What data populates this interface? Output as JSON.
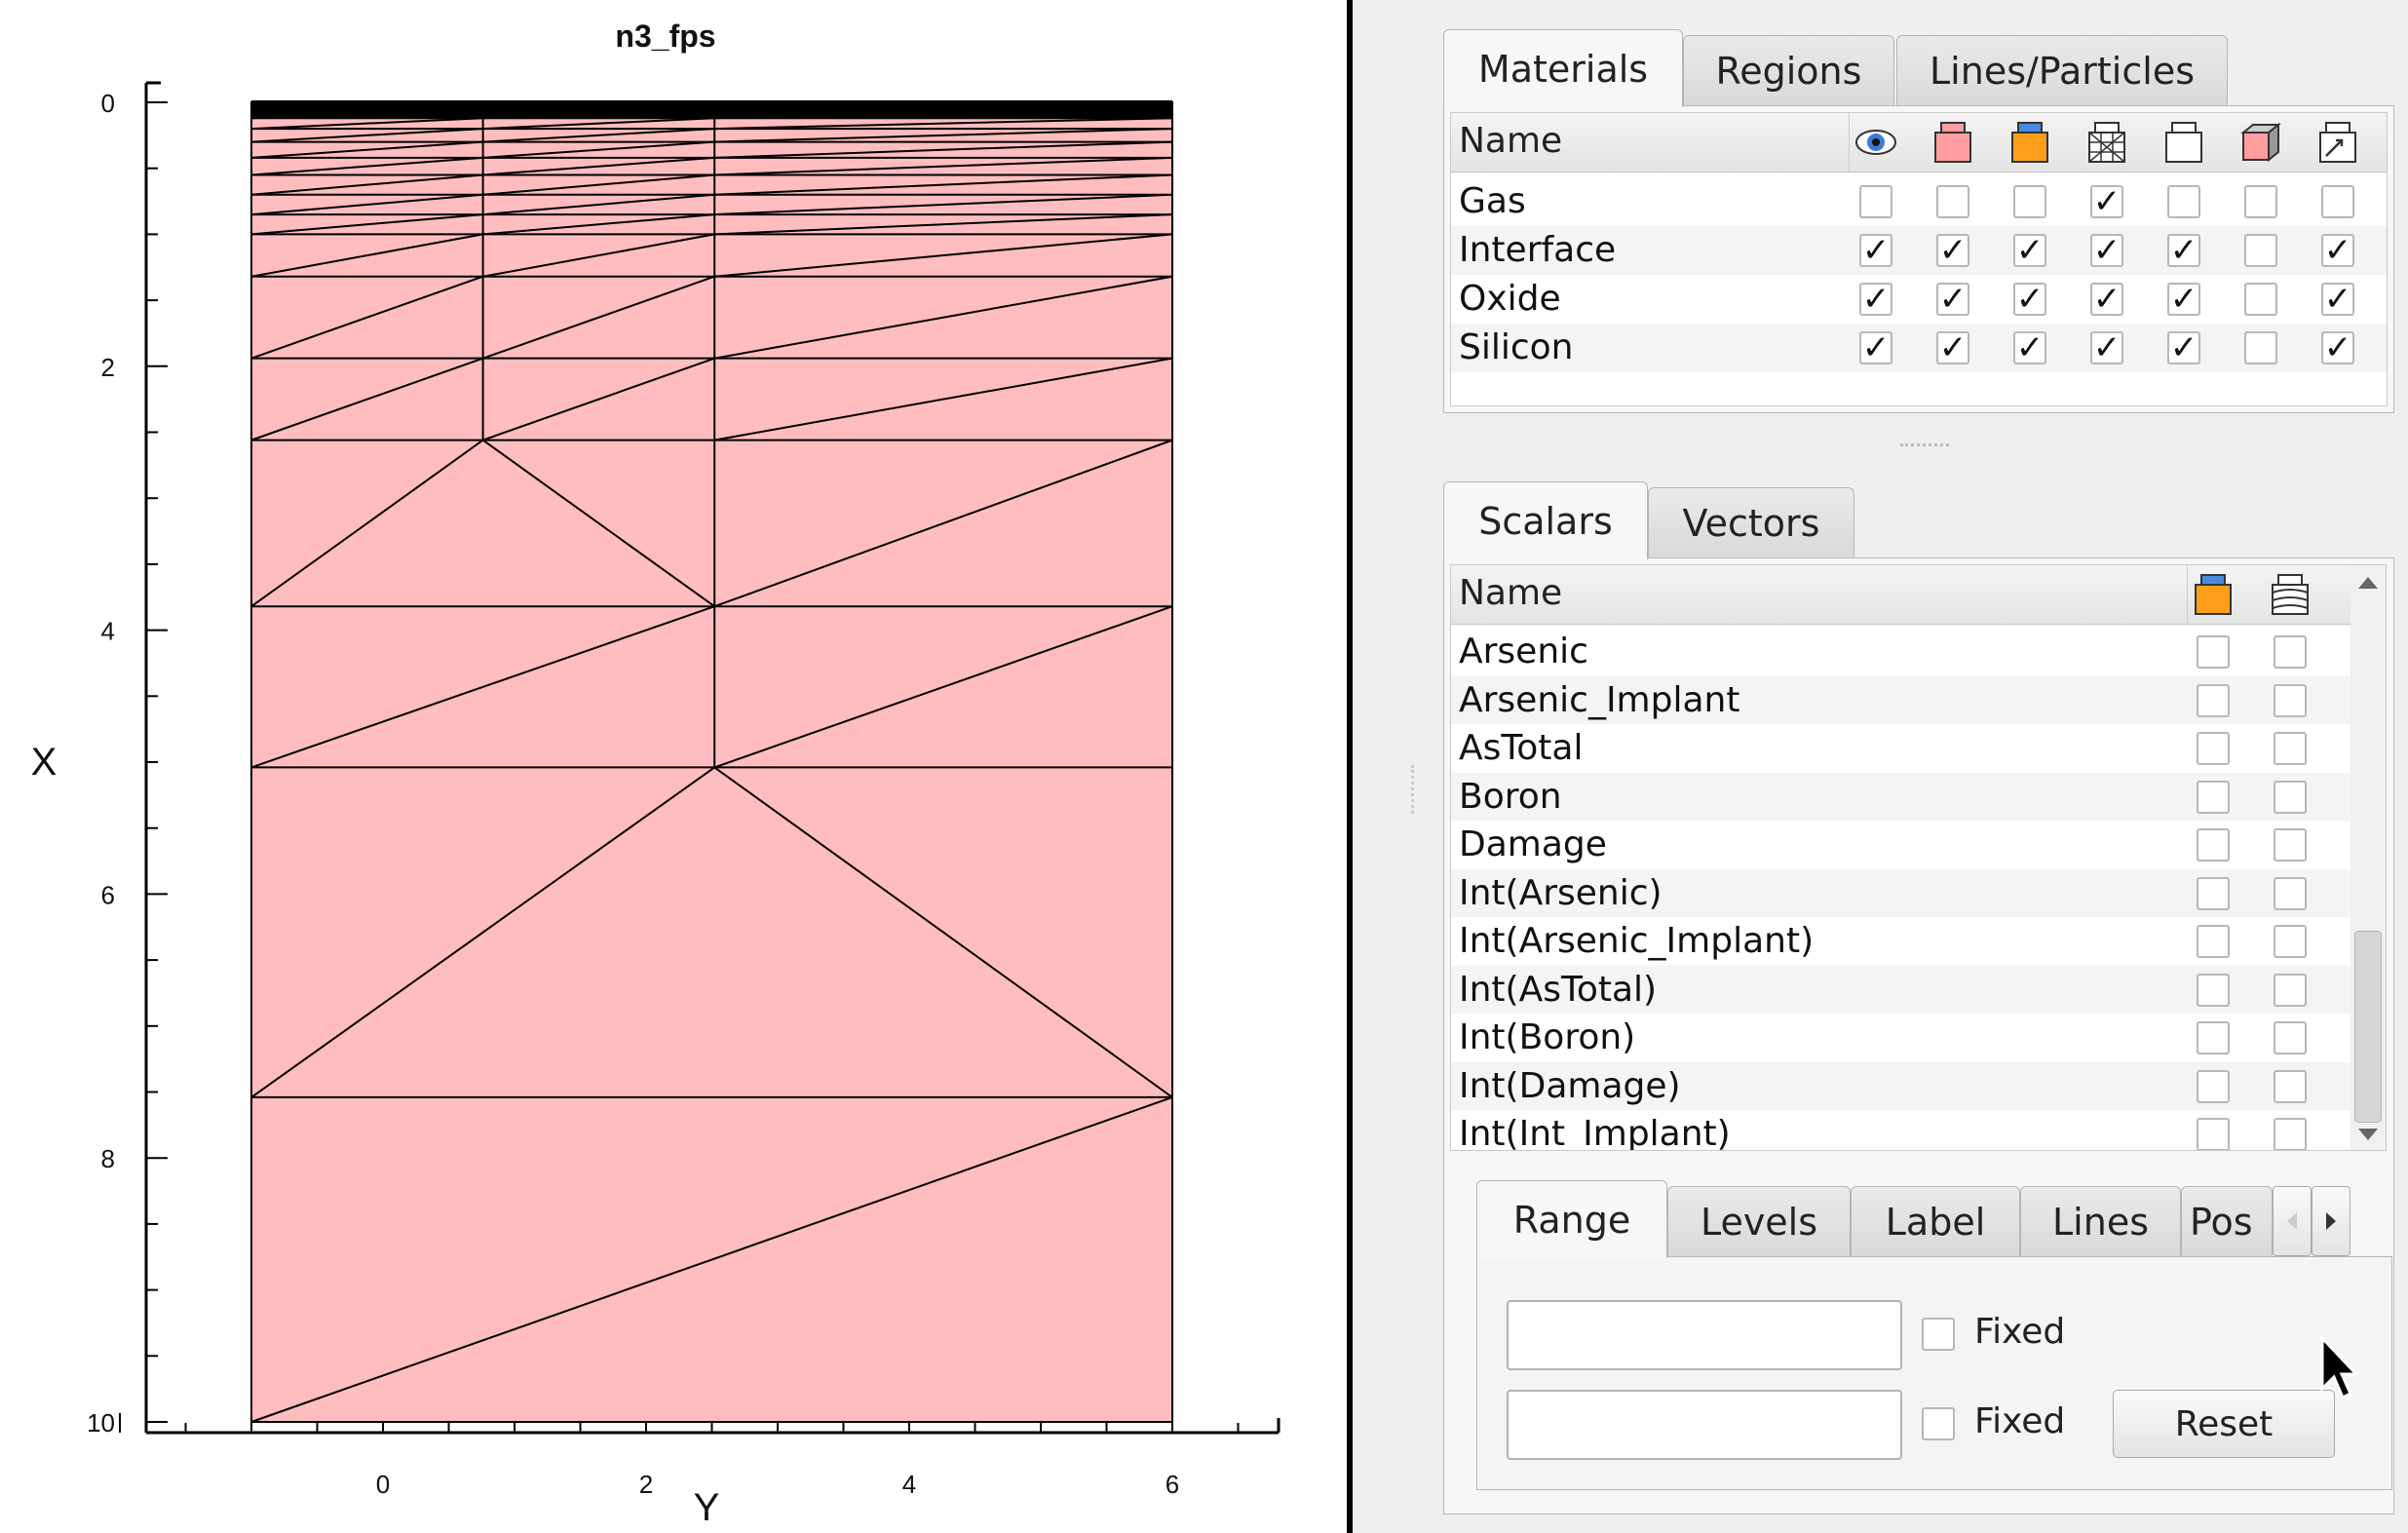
{
  "plot": {
    "title": "n3_fps",
    "xlabel": "Y",
    "ylabel": "X",
    "x_ticks": [
      "0",
      "2",
      "4",
      "6"
    ],
    "y_ticks": [
      "0",
      "2",
      "4",
      "6",
      "8",
      "10"
    ],
    "region_color": "#ffbdbf"
  },
  "materials_panel": {
    "tabs": [
      "Materials",
      "Regions",
      "Lines/Particles"
    ],
    "header_name": "Name",
    "column_icons": [
      "eye-icon",
      "fill-icon",
      "orange-fill-icon",
      "mesh-icon",
      "outline-icon",
      "box-3d-icon",
      "label-icon"
    ],
    "rows": [
      {
        "name": "Gas",
        "checks": [
          false,
          false,
          false,
          true,
          false,
          false,
          false
        ]
      },
      {
        "name": "Interface",
        "checks": [
          true,
          true,
          true,
          true,
          true,
          false,
          true
        ]
      },
      {
        "name": "Oxide",
        "checks": [
          true,
          true,
          true,
          true,
          true,
          false,
          true
        ]
      },
      {
        "name": "Silicon",
        "checks": [
          true,
          true,
          true,
          true,
          true,
          false,
          true
        ]
      }
    ]
  },
  "scalars_panel": {
    "tabs": [
      "Scalars",
      "Vectors"
    ],
    "header_name": "Name",
    "column_icons": [
      "orange-fill-icon",
      "contour-icon"
    ],
    "rows": [
      "Arsenic",
      "Arsenic_Implant",
      "AsTotal",
      "Boron",
      "Damage",
      "Int(Arsenic)",
      "Int(Arsenic_Implant)",
      "Int(AsTotal)",
      "Int(Boron)",
      "Int(Damage)",
      "Int(Int_Implant)"
    ]
  },
  "range_panel": {
    "tabs": [
      "Range",
      "Levels",
      "Label",
      "Lines",
      "Pos"
    ],
    "fixed_label_1": "Fixed",
    "fixed_label_2": "Fixed",
    "reset_label": "Reset",
    "min_value": "",
    "max_value": ""
  }
}
